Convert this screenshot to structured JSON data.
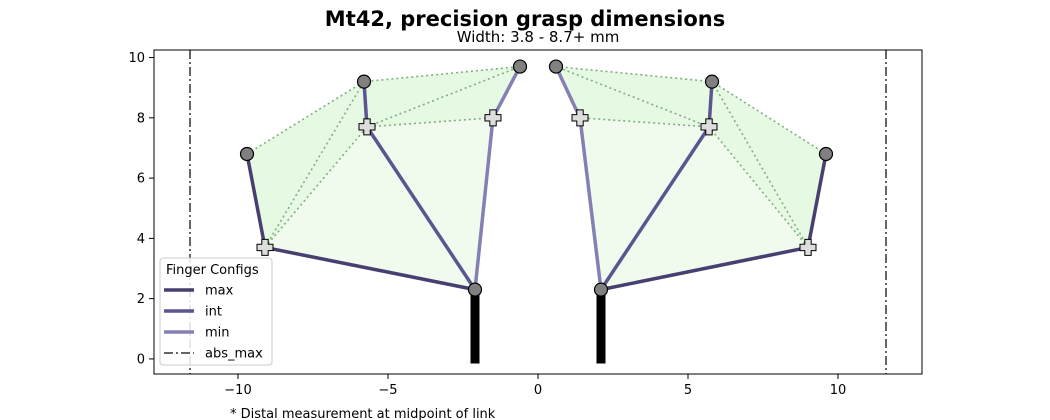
{
  "chart_data": {
    "type": "line",
    "title": "Mt42, precision grasp dimensions",
    "subtitle": "Width: 3.8 - 8.7+ mm",
    "xlabel": "",
    "ylabel": "",
    "xlim": [
      -12.8,
      12.8
    ],
    "ylim": [
      -0.5,
      10.25
    ],
    "x_ticks": [
      -10,
      -5,
      0,
      5,
      10
    ],
    "y_ticks": [
      0,
      2,
      4,
      6,
      8,
      10
    ],
    "grid": false,
    "legend": {
      "title": "Finger Configs",
      "placement": "lower-left",
      "entries": [
        {
          "name": "max",
          "style": "solid",
          "color": "#463f70"
        },
        {
          "name": "int",
          "style": "solid",
          "color": "#5b5591"
        },
        {
          "name": "min",
          "style": "solid",
          "color": "#8480b4"
        },
        {
          "name": "abs_max",
          "style": "dashdot",
          "color": "#333333"
        }
      ]
    },
    "palms": [
      {
        "x": -2.1,
        "y_bottom": -0.15,
        "y_top": 2.3,
        "color": "#000000"
      },
      {
        "x": 2.1,
        "y_bottom": -0.15,
        "y_top": 2.3,
        "color": "#000000"
      }
    ],
    "abs_max_lines": [
      -11.6,
      11.6
    ],
    "series": [
      {
        "name": "max",
        "color": "#463f70",
        "left": [
          [
            -2.1,
            2.3
          ],
          [
            -9.1,
            3.7
          ],
          [
            -9.7,
            6.8
          ]
        ],
        "right": [
          [
            2.1,
            2.3
          ],
          [
            9.0,
            3.7
          ],
          [
            9.6,
            6.8
          ]
        ]
      },
      {
        "name": "int",
        "color": "#5b5591",
        "left": [
          [
            -2.1,
            2.3
          ],
          [
            -5.7,
            7.7
          ],
          [
            -5.8,
            9.2
          ]
        ],
        "right": [
          [
            2.1,
            2.3
          ],
          [
            5.7,
            7.7
          ],
          [
            5.8,
            9.2
          ]
        ]
      },
      {
        "name": "min",
        "color": "#8480b4",
        "left": [
          [
            -2.1,
            2.3
          ],
          [
            -1.5,
            8.0
          ],
          [
            -0.6,
            9.7
          ]
        ],
        "right": [
          [
            2.1,
            2.3
          ],
          [
            1.4,
            8.0
          ],
          [
            0.6,
            9.7
          ]
        ]
      }
    ],
    "colors": {
      "proximal_fill": "#f0fbee",
      "distal_fill": "#e6f9e2",
      "dotted_outline": "#7fb07f",
      "joint_cross_fill": "#dddddd",
      "tip_circle_fill": "#808080"
    }
  },
  "footnote": "* Distal measurement at midpoint of link"
}
